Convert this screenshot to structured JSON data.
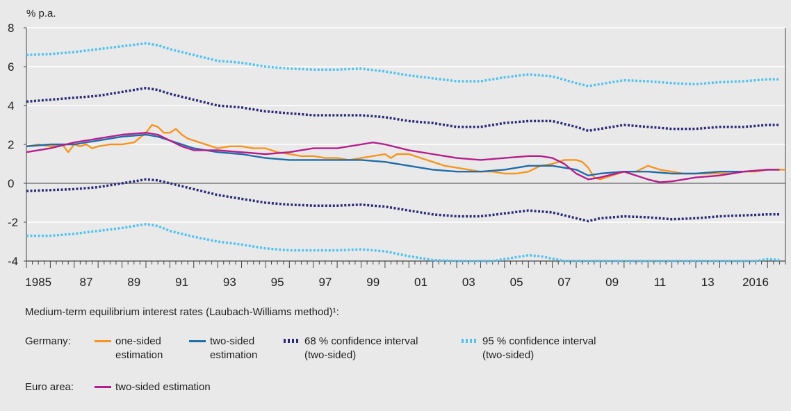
{
  "chart_data": {
    "type": "line",
    "unit_label": "% p.a.",
    "x_ticks": [
      "1985",
      "87",
      "89",
      "91",
      "93",
      "95",
      "97",
      "99",
      "01",
      "03",
      "05",
      "07",
      "09",
      "11",
      "13",
      "2016"
    ],
    "ylim": [
      -4,
      8
    ],
    "y_ticks": [
      "8",
      "6",
      "4",
      "2",
      "0",
      "-2",
      "-4"
    ],
    "xlim": [
      1985.0,
      2016.75
    ],
    "grid": true,
    "series": [
      {
        "name": "Germany: one-sided estimation",
        "color": "#f7941d",
        "style": "solid",
        "x": [
          1985.0,
          1985.5,
          1986.0,
          1986.5,
          1986.75,
          1987.0,
          1987.25,
          1987.5,
          1987.75,
          1988.0,
          1988.5,
          1989.0,
          1989.5,
          1990.0,
          1990.25,
          1990.5,
          1990.75,
          1991.0,
          1991.25,
          1991.5,
          1991.75,
          1992.0,
          1992.5,
          1993.0,
          1993.5,
          1994.0,
          1994.5,
          1995.0,
          1995.5,
          1996.0,
          1996.5,
          1997.0,
          1997.5,
          1998.0,
          1998.5,
          1999.0,
          1999.5,
          2000.0,
          2000.25,
          2000.5,
          2001.0,
          2001.5,
          2002.0,
          2002.5,
          2003.0,
          2003.5,
          2004.0,
          2004.5,
          2005.0,
          2005.5,
          2006.0,
          2006.5,
          2007.0,
          2007.5,
          2008.0,
          2008.25,
          2008.5,
          2008.75,
          2009.0,
          2009.5,
          2010.0,
          2010.5,
          2011.0,
          2011.5,
          2012.0,
          2012.5,
          2013.0,
          2013.5,
          2014.0,
          2014.5,
          2015.0,
          2015.5,
          2016.0,
          2016.5,
          2016.75
        ],
        "values": [
          1.9,
          2.0,
          1.9,
          2.0,
          1.6,
          2.0,
          1.9,
          2.0,
          1.8,
          1.9,
          2.0,
          2.0,
          2.1,
          2.6,
          3.0,
          2.9,
          2.6,
          2.6,
          2.8,
          2.5,
          2.3,
          2.2,
          2.0,
          1.8,
          1.9,
          1.9,
          1.8,
          1.8,
          1.6,
          1.5,
          1.4,
          1.4,
          1.3,
          1.3,
          1.2,
          1.3,
          1.4,
          1.5,
          1.3,
          1.5,
          1.5,
          1.3,
          1.1,
          0.9,
          0.8,
          0.7,
          0.6,
          0.6,
          0.5,
          0.5,
          0.6,
          0.9,
          1.0,
          1.2,
          1.2,
          1.1,
          0.8,
          0.3,
          0.2,
          0.4,
          0.6,
          0.6,
          0.9,
          0.7,
          0.6,
          0.5,
          0.5,
          0.5,
          0.5,
          0.5,
          0.6,
          0.6,
          0.7,
          0.7,
          0.7
        ]
      },
      {
        "name": "Germany: two-sided estimation",
        "color": "#1f6ca9",
        "style": "solid",
        "x": [
          1985.0,
          1986.0,
          1987.0,
          1988.0,
          1989.0,
          1990.0,
          1990.5,
          1991.0,
          1991.5,
          1992.0,
          1993.0,
          1994.0,
          1995.0,
          1996.0,
          1997.0,
          1998.0,
          1999.0,
          2000.0,
          2001.0,
          2002.0,
          2003.0,
          2004.0,
          2005.0,
          2006.0,
          2007.0,
          2008.0,
          2008.5,
          2009.0,
          2010.0,
          2011.0,
          2012.0,
          2013.0,
          2014.0,
          2015.0,
          2016.0,
          2016.5
        ],
        "values": [
          1.9,
          2.0,
          2.0,
          2.2,
          2.4,
          2.5,
          2.4,
          2.2,
          2.0,
          1.8,
          1.6,
          1.5,
          1.3,
          1.2,
          1.2,
          1.2,
          1.2,
          1.1,
          0.9,
          0.7,
          0.6,
          0.6,
          0.7,
          0.9,
          0.9,
          0.7,
          0.4,
          0.5,
          0.6,
          0.6,
          0.5,
          0.5,
          0.6,
          0.6,
          0.7,
          0.7
        ]
      },
      {
        "name": "Germany: 68 % confidence interval (two-sided) upper",
        "color": "#2e2a7a",
        "style": "dotted",
        "x": [
          1985.0,
          1986.0,
          1987.0,
          1988.0,
          1989.0,
          1990.0,
          1990.5,
          1991.0,
          1992.0,
          1993.0,
          1994.0,
          1995.0,
          1996.0,
          1997.0,
          1998.0,
          1999.0,
          2000.0,
          2001.0,
          2002.0,
          2003.0,
          2004.0,
          2005.0,
          2006.0,
          2007.0,
          2008.0,
          2008.5,
          2009.0,
          2010.0,
          2011.0,
          2012.0,
          2013.0,
          2014.0,
          2015.0,
          2016.0,
          2016.5
        ],
        "values": [
          4.2,
          4.3,
          4.4,
          4.5,
          4.7,
          4.9,
          4.8,
          4.6,
          4.3,
          4.0,
          3.9,
          3.7,
          3.6,
          3.5,
          3.5,
          3.5,
          3.4,
          3.2,
          3.1,
          2.9,
          2.9,
          3.1,
          3.2,
          3.2,
          2.9,
          2.7,
          2.8,
          3.0,
          2.9,
          2.8,
          2.8,
          2.9,
          2.9,
          3.0,
          3.0
        ]
      },
      {
        "name": "Germany: 68 % confidence interval (two-sided) lower",
        "color": "#2e2a7a",
        "style": "dotted",
        "x": [
          1985.0,
          1986.0,
          1987.0,
          1988.0,
          1989.0,
          1990.0,
          1990.5,
          1991.0,
          1992.0,
          1993.0,
          1994.0,
          1995.0,
          1996.0,
          1997.0,
          1998.0,
          1999.0,
          2000.0,
          2001.0,
          2002.0,
          2003.0,
          2004.0,
          2005.0,
          2006.0,
          2007.0,
          2008.0,
          2008.5,
          2009.0,
          2010.0,
          2011.0,
          2012.0,
          2013.0,
          2014.0,
          2015.0,
          2016.0,
          2016.5
        ],
        "values": [
          -0.4,
          -0.35,
          -0.3,
          -0.2,
          0.0,
          0.2,
          0.15,
          0.0,
          -0.3,
          -0.6,
          -0.8,
          -1.0,
          -1.1,
          -1.15,
          -1.15,
          -1.1,
          -1.2,
          -1.4,
          -1.6,
          -1.7,
          -1.7,
          -1.55,
          -1.4,
          -1.5,
          -1.8,
          -1.95,
          -1.8,
          -1.7,
          -1.75,
          -1.85,
          -1.8,
          -1.7,
          -1.65,
          -1.6,
          -1.6
        ]
      },
      {
        "name": "Germany: 95 % confidence interval (two-sided) upper",
        "color": "#4fc3f0",
        "style": "dotted",
        "x": [
          1985.0,
          1986.0,
          1987.0,
          1988.0,
          1989.0,
          1990.0,
          1990.5,
          1991.0,
          1992.0,
          1993.0,
          1994.0,
          1995.0,
          1996.0,
          1997.0,
          1998.0,
          1999.0,
          2000.0,
          2001.0,
          2002.0,
          2003.0,
          2004.0,
          2005.0,
          2006.0,
          2007.0,
          2008.0,
          2008.5,
          2009.0,
          2010.0,
          2011.0,
          2012.0,
          2013.0,
          2014.0,
          2015.0,
          2016.0,
          2016.5
        ],
        "values": [
          6.6,
          6.65,
          6.75,
          6.9,
          7.05,
          7.2,
          7.1,
          6.9,
          6.6,
          6.3,
          6.2,
          6.0,
          5.9,
          5.85,
          5.85,
          5.9,
          5.75,
          5.55,
          5.4,
          5.25,
          5.25,
          5.45,
          5.6,
          5.5,
          5.15,
          5.0,
          5.1,
          5.3,
          5.25,
          5.15,
          5.1,
          5.2,
          5.25,
          5.35,
          5.35
        ]
      },
      {
        "name": "Germany: 95 % confidence interval (two-sided) lower",
        "color": "#4fc3f0",
        "style": "dotted",
        "x": [
          1985.0,
          1986.0,
          1987.0,
          1988.0,
          1989.0,
          1990.0,
          1990.5,
          1991.0,
          1992.0,
          1993.0,
          1994.0,
          1995.0,
          1996.0,
          1997.0,
          1998.0,
          1999.0,
          2000.0,
          2001.0,
          2002.0,
          2003.0,
          2004.5,
          2005.5,
          2006.0,
          2006.5,
          2007.5,
          2015.5,
          2016.0,
          2016.5
        ],
        "values": [
          -2.7,
          -2.7,
          -2.6,
          -2.45,
          -2.3,
          -2.1,
          -2.2,
          -2.45,
          -2.75,
          -3.0,
          -3.15,
          -3.35,
          -3.45,
          -3.45,
          -3.45,
          -3.4,
          -3.5,
          -3.75,
          -3.95,
          -4.0,
          -4.0,
          -3.8,
          -3.7,
          -3.75,
          -4.0,
          -4.0,
          -3.9,
          -3.95
        ]
      },
      {
        "name": "Euro area: two-sided estimation",
        "color": "#b51e8c",
        "style": "solid",
        "x": [
          1985.0,
          1986.0,
          1987.0,
          1988.0,
          1989.0,
          1990.0,
          1990.5,
          1991.0,
          1991.5,
          1992.0,
          1992.5,
          1993.0,
          1994.0,
          1995.0,
          1996.0,
          1997.0,
          1998.0,
          1999.0,
          1999.5,
          2000.0,
          2001.0,
          2002.0,
          2003.0,
          2004.0,
          2005.0,
          2006.0,
          2006.5,
          2007.0,
          2007.5,
          2008.0,
          2008.5,
          2009.0,
          2010.0,
          2010.5,
          2011.0,
          2011.5,
          2012.0,
          2012.5,
          2013.0,
          2014.0,
          2015.0,
          2016.0,
          2016.5
        ],
        "values": [
          1.6,
          1.8,
          2.1,
          2.3,
          2.5,
          2.6,
          2.5,
          2.2,
          1.9,
          1.7,
          1.7,
          1.7,
          1.6,
          1.5,
          1.6,
          1.8,
          1.8,
          2.0,
          2.1,
          2.0,
          1.7,
          1.5,
          1.3,
          1.2,
          1.3,
          1.4,
          1.4,
          1.3,
          1.0,
          0.5,
          0.2,
          0.3,
          0.6,
          0.4,
          0.2,
          0.05,
          0.1,
          0.2,
          0.3,
          0.4,
          0.6,
          0.7,
          0.7
        ]
      }
    ]
  },
  "legend": {
    "title": "Medium-term equilibrium interest rates (Laubach-Williams method)¹:",
    "germany_label": "Germany:",
    "euro_label": "Euro area:",
    "items": [
      {
        "label": "one-sided\nestimation",
        "color": "#f7941d",
        "style": "solid"
      },
      {
        "label": "two-sided\nestimation",
        "color": "#1f6ca9",
        "style": "solid"
      },
      {
        "label": "68 % confidence interval\n(two-sided)",
        "color": "#2e2a7a",
        "style": "dotted"
      },
      {
        "label": "95 % confidence interval\n(two-sided)",
        "color": "#4fc3f0",
        "style": "dotted"
      }
    ],
    "euro_item": {
      "label": "two-sided estimation",
      "color": "#b51e8c",
      "style": "solid"
    }
  }
}
